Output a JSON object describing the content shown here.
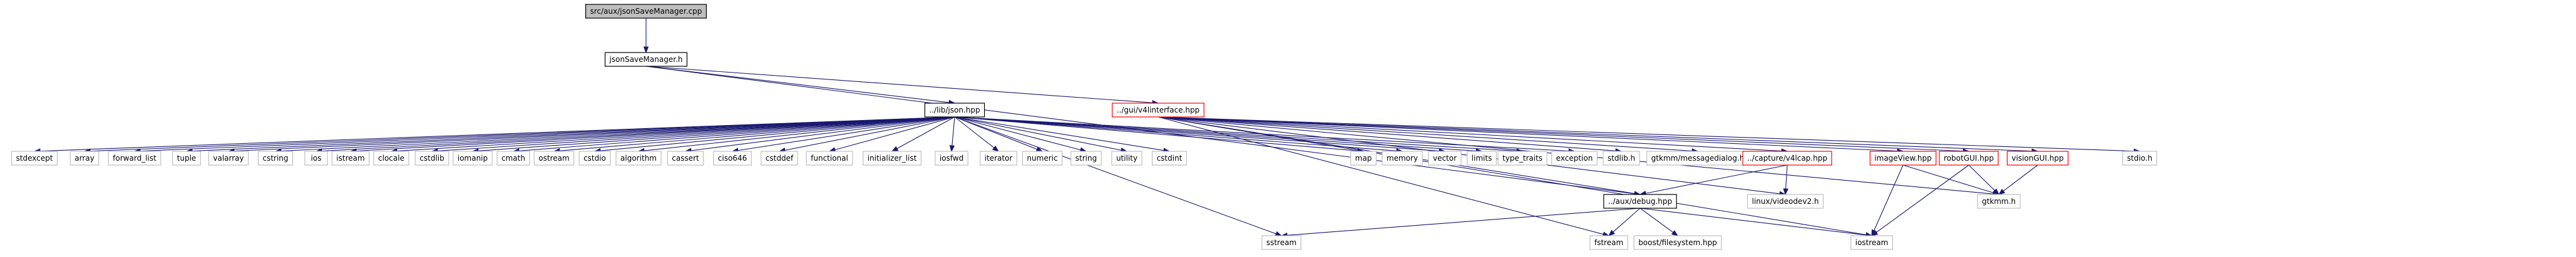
{
  "graph": {
    "nodes": [
      {
        "id": "root",
        "label": "src/aux/jsonSaveManager.cpp",
        "style": "highlight"
      },
      {
        "id": "jsm",
        "label": "jsonSaveManager.h",
        "style": "documented"
      },
      {
        "id": "json",
        "label": "../lib/json.hpp",
        "style": "documented"
      },
      {
        "id": "v4l",
        "label": "../gui/v4linterface.hpp",
        "style": "red"
      },
      {
        "id": "stdexcept",
        "label": "stdexcept",
        "style": "plain"
      },
      {
        "id": "array",
        "label": "array",
        "style": "plain"
      },
      {
        "id": "forward_list",
        "label": "forward_list",
        "style": "plain"
      },
      {
        "id": "tuple",
        "label": "tuple",
        "style": "plain"
      },
      {
        "id": "valarray",
        "label": "valarray",
        "style": "plain"
      },
      {
        "id": "cstring",
        "label": "cstring",
        "style": "plain"
      },
      {
        "id": "ios",
        "label": "ios",
        "style": "plain"
      },
      {
        "id": "istream",
        "label": "istream",
        "style": "plain"
      },
      {
        "id": "clocale",
        "label": "clocale",
        "style": "plain"
      },
      {
        "id": "cstdlib",
        "label": "cstdlib",
        "style": "plain"
      },
      {
        "id": "iomanip",
        "label": "iomanip",
        "style": "plain"
      },
      {
        "id": "cmath",
        "label": "cmath",
        "style": "plain"
      },
      {
        "id": "ostream",
        "label": "ostream",
        "style": "plain"
      },
      {
        "id": "cstdio",
        "label": "cstdio",
        "style": "plain"
      },
      {
        "id": "algorithm",
        "label": "algorithm",
        "style": "plain"
      },
      {
        "id": "cassert",
        "label": "cassert",
        "style": "plain"
      },
      {
        "id": "ciso646",
        "label": "ciso646",
        "style": "plain"
      },
      {
        "id": "cstddef",
        "label": "cstddef",
        "style": "plain"
      },
      {
        "id": "functional",
        "label": "functional",
        "style": "plain"
      },
      {
        "id": "initializer_list",
        "label": "initializer_list",
        "style": "plain"
      },
      {
        "id": "iosfwd",
        "label": "iosfwd",
        "style": "plain"
      },
      {
        "id": "iterator",
        "label": "iterator",
        "style": "plain"
      },
      {
        "id": "numeric",
        "label": "numeric",
        "style": "plain"
      },
      {
        "id": "string",
        "label": "string",
        "style": "plain"
      },
      {
        "id": "utility",
        "label": "utility",
        "style": "plain"
      },
      {
        "id": "cstdint",
        "label": "cstdint",
        "style": "plain"
      },
      {
        "id": "map",
        "label": "map",
        "style": "plain"
      },
      {
        "id": "memory",
        "label": "memory",
        "style": "plain"
      },
      {
        "id": "vector",
        "label": "vector",
        "style": "plain"
      },
      {
        "id": "limits",
        "label": "limits",
        "style": "plain"
      },
      {
        "id": "type_traits",
        "label": "type_traits",
        "style": "plain"
      },
      {
        "id": "exception",
        "label": "exception",
        "style": "plain"
      },
      {
        "id": "stdlib",
        "label": "stdlib.h",
        "style": "plain"
      },
      {
        "id": "gtkmm_md",
        "label": "gtkmm/messagedialog.h",
        "style": "plain"
      },
      {
        "id": "vcap",
        "label": "../capture/v4lcap.hpp",
        "style": "red"
      },
      {
        "id": "imageview",
        "label": "imageView.hpp",
        "style": "red"
      },
      {
        "id": "robotgui",
        "label": "robotGUI.hpp",
        "style": "red"
      },
      {
        "id": "visiongui",
        "label": "visionGUI.hpp",
        "style": "red"
      },
      {
        "id": "stdioh",
        "label": "stdio.h",
        "style": "plain"
      },
      {
        "id": "debug",
        "label": "../aux/debug.hpp",
        "style": "documented"
      },
      {
        "id": "videodev2",
        "label": "linux/videodev2.h",
        "style": "plain"
      },
      {
        "id": "gtkmm",
        "label": "gtkmm.h",
        "style": "plain"
      },
      {
        "id": "sstream",
        "label": "sstream",
        "style": "plain"
      },
      {
        "id": "fstream",
        "label": "fstream",
        "style": "plain"
      },
      {
        "id": "boostfs",
        "label": "boost/filesystem.hpp",
        "style": "plain"
      },
      {
        "id": "iostream",
        "label": "iostream",
        "style": "plain"
      }
    ],
    "edges": [
      [
        "root",
        "jsm"
      ],
      [
        "jsm",
        "json"
      ],
      [
        "jsm",
        "v4l"
      ],
      [
        "jsm",
        "debug"
      ],
      [
        "json",
        "stdexcept"
      ],
      [
        "json",
        "array"
      ],
      [
        "json",
        "forward_list"
      ],
      [
        "json",
        "tuple"
      ],
      [
        "json",
        "valarray"
      ],
      [
        "json",
        "cstring"
      ],
      [
        "json",
        "ios"
      ],
      [
        "json",
        "istream"
      ],
      [
        "json",
        "clocale"
      ],
      [
        "json",
        "cstdlib"
      ],
      [
        "json",
        "iomanip"
      ],
      [
        "json",
        "cmath"
      ],
      [
        "json",
        "ostream"
      ],
      [
        "json",
        "cstdio"
      ],
      [
        "json",
        "algorithm"
      ],
      [
        "json",
        "cassert"
      ],
      [
        "json",
        "ciso646"
      ],
      [
        "json",
        "cstddef"
      ],
      [
        "json",
        "functional"
      ],
      [
        "json",
        "initializer_list"
      ],
      [
        "json",
        "iosfwd"
      ],
      [
        "json",
        "iterator"
      ],
      [
        "json",
        "numeric"
      ],
      [
        "json",
        "string"
      ],
      [
        "json",
        "utility"
      ],
      [
        "json",
        "cstdint"
      ],
      [
        "json",
        "map"
      ],
      [
        "json",
        "memory"
      ],
      [
        "json",
        "vector"
      ],
      [
        "json",
        "limits"
      ],
      [
        "json",
        "type_traits"
      ],
      [
        "json",
        "exception"
      ],
      [
        "json",
        "sstream"
      ],
      [
        "v4l",
        "stdlib"
      ],
      [
        "v4l",
        "gtkmm_md"
      ],
      [
        "v4l",
        "vcap"
      ],
      [
        "v4l",
        "imageview"
      ],
      [
        "v4l",
        "robotgui"
      ],
      [
        "v4l",
        "visiongui"
      ],
      [
        "v4l",
        "stdioh"
      ],
      [
        "v4l",
        "debug"
      ],
      [
        "v4l",
        "videodev2"
      ],
      [
        "v4l",
        "gtkmm"
      ],
      [
        "v4l",
        "fstream"
      ],
      [
        "v4l",
        "iostream"
      ],
      [
        "vcap",
        "debug"
      ],
      [
        "vcap",
        "videodev2"
      ],
      [
        "imageview",
        "gtkmm"
      ],
      [
        "imageview",
        "iostream"
      ],
      [
        "robotgui",
        "gtkmm"
      ],
      [
        "robotgui",
        "iostream"
      ],
      [
        "visiongui",
        "gtkmm"
      ],
      [
        "debug",
        "sstream"
      ],
      [
        "debug",
        "fstream"
      ],
      [
        "debug",
        "boostfs"
      ],
      [
        "debug",
        "iostream"
      ]
    ]
  }
}
